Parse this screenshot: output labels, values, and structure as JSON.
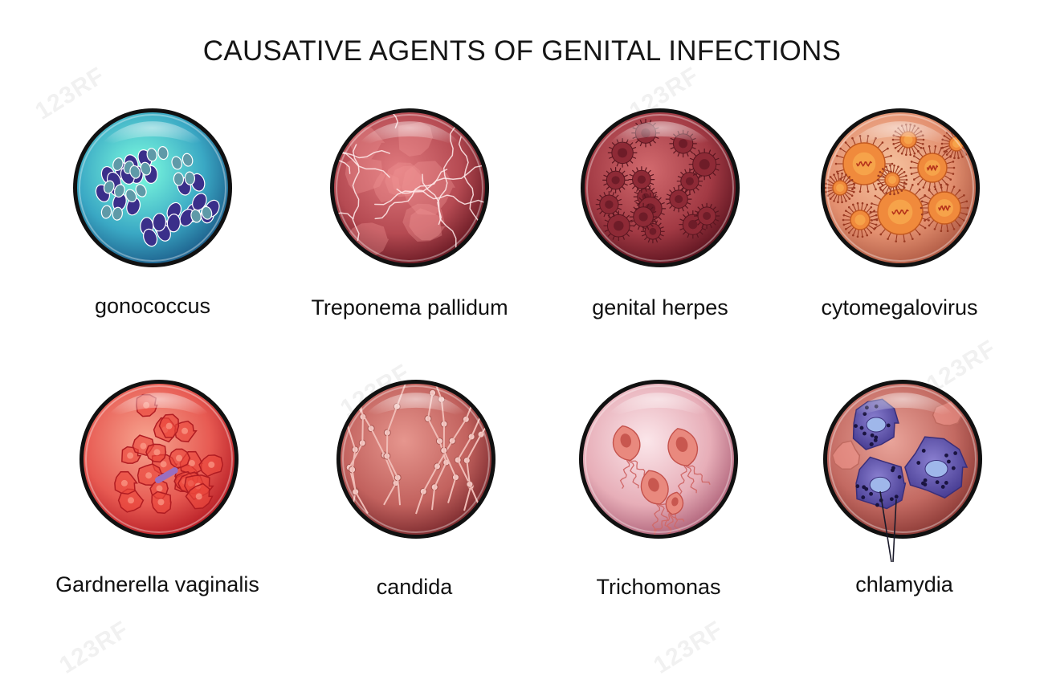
{
  "title": "CAUSATIVE AGENTS OF GENITAL INFECTIONS",
  "watermark": "123RF",
  "agents": [
    {
      "label": "gonococcus",
      "icon": "gonococcus-icon",
      "colors": [
        "#7fffe0",
        "#3aa8c4",
        "#1d5f8c"
      ]
    },
    {
      "label": "Treponema pallidum",
      "icon": "treponema-icon",
      "colors": [
        "#e07a7e",
        "#b54a52",
        "#6a1a24"
      ]
    },
    {
      "label": "genital herpes",
      "icon": "herpes-virus-icon",
      "colors": [
        "#d26a6e",
        "#a23a44",
        "#5e1420"
      ]
    },
    {
      "label": "cytomegalovirus",
      "icon": "cytomegalovirus-icon",
      "colors": [
        "#f6c4a0",
        "#e39070",
        "#b05a44"
      ]
    },
    {
      "label": "Gardnerella vaginalis",
      "icon": "gardnerella-icon",
      "colors": [
        "#f7a590",
        "#e75a52",
        "#b81e26"
      ]
    },
    {
      "label": "candida",
      "icon": "candida-icon",
      "colors": [
        "#e6968e",
        "#c2625e",
        "#7c2a2e"
      ]
    },
    {
      "label": "Trichomonas",
      "icon": "trichomonas-icon",
      "colors": [
        "#fbe6ea",
        "#e7aeb8",
        "#b0637a"
      ]
    },
    {
      "label": "chlamydia",
      "icon": "chlamydia-icon",
      "colors": [
        "#e9a49a",
        "#c36a62",
        "#8c3a36"
      ]
    }
  ]
}
